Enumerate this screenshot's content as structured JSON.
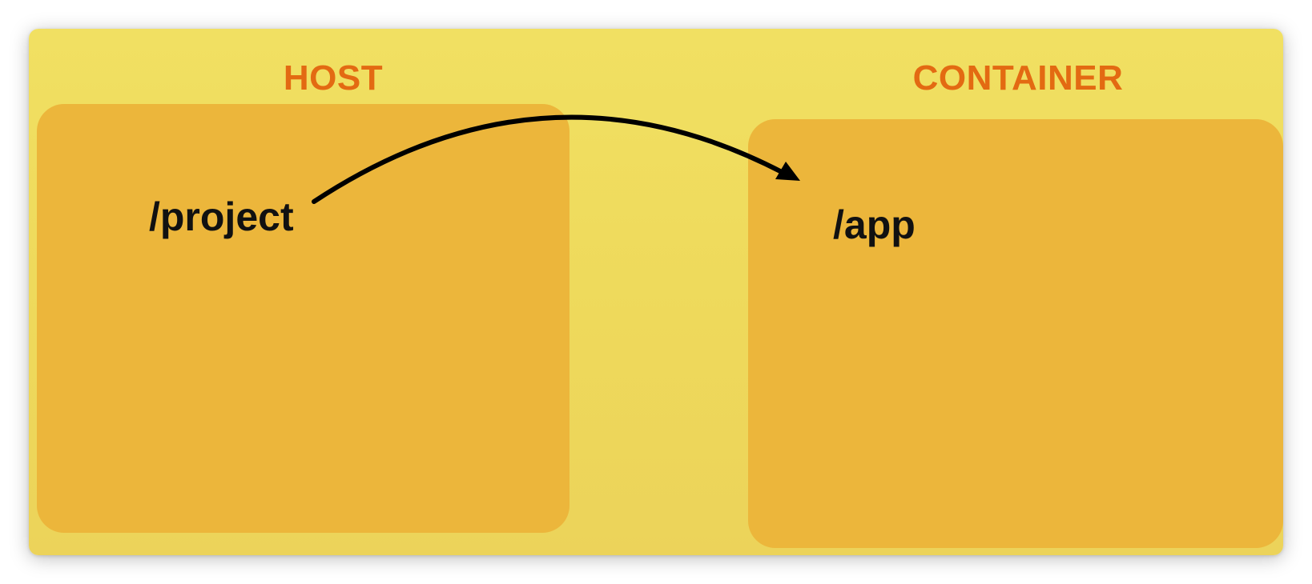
{
  "diagram": {
    "colors": {
      "background": "#f1e062",
      "box_fill": "#ecb63b",
      "heading": "#e36a12",
      "label": "#111111",
      "arrow": "#000000"
    },
    "host": {
      "heading": "HOST",
      "path": "/project"
    },
    "container": {
      "heading": "CONTAINER",
      "path": "/app"
    },
    "connector": {
      "from": "host.path",
      "to": "container.path",
      "style": "curved-arrow"
    }
  }
}
